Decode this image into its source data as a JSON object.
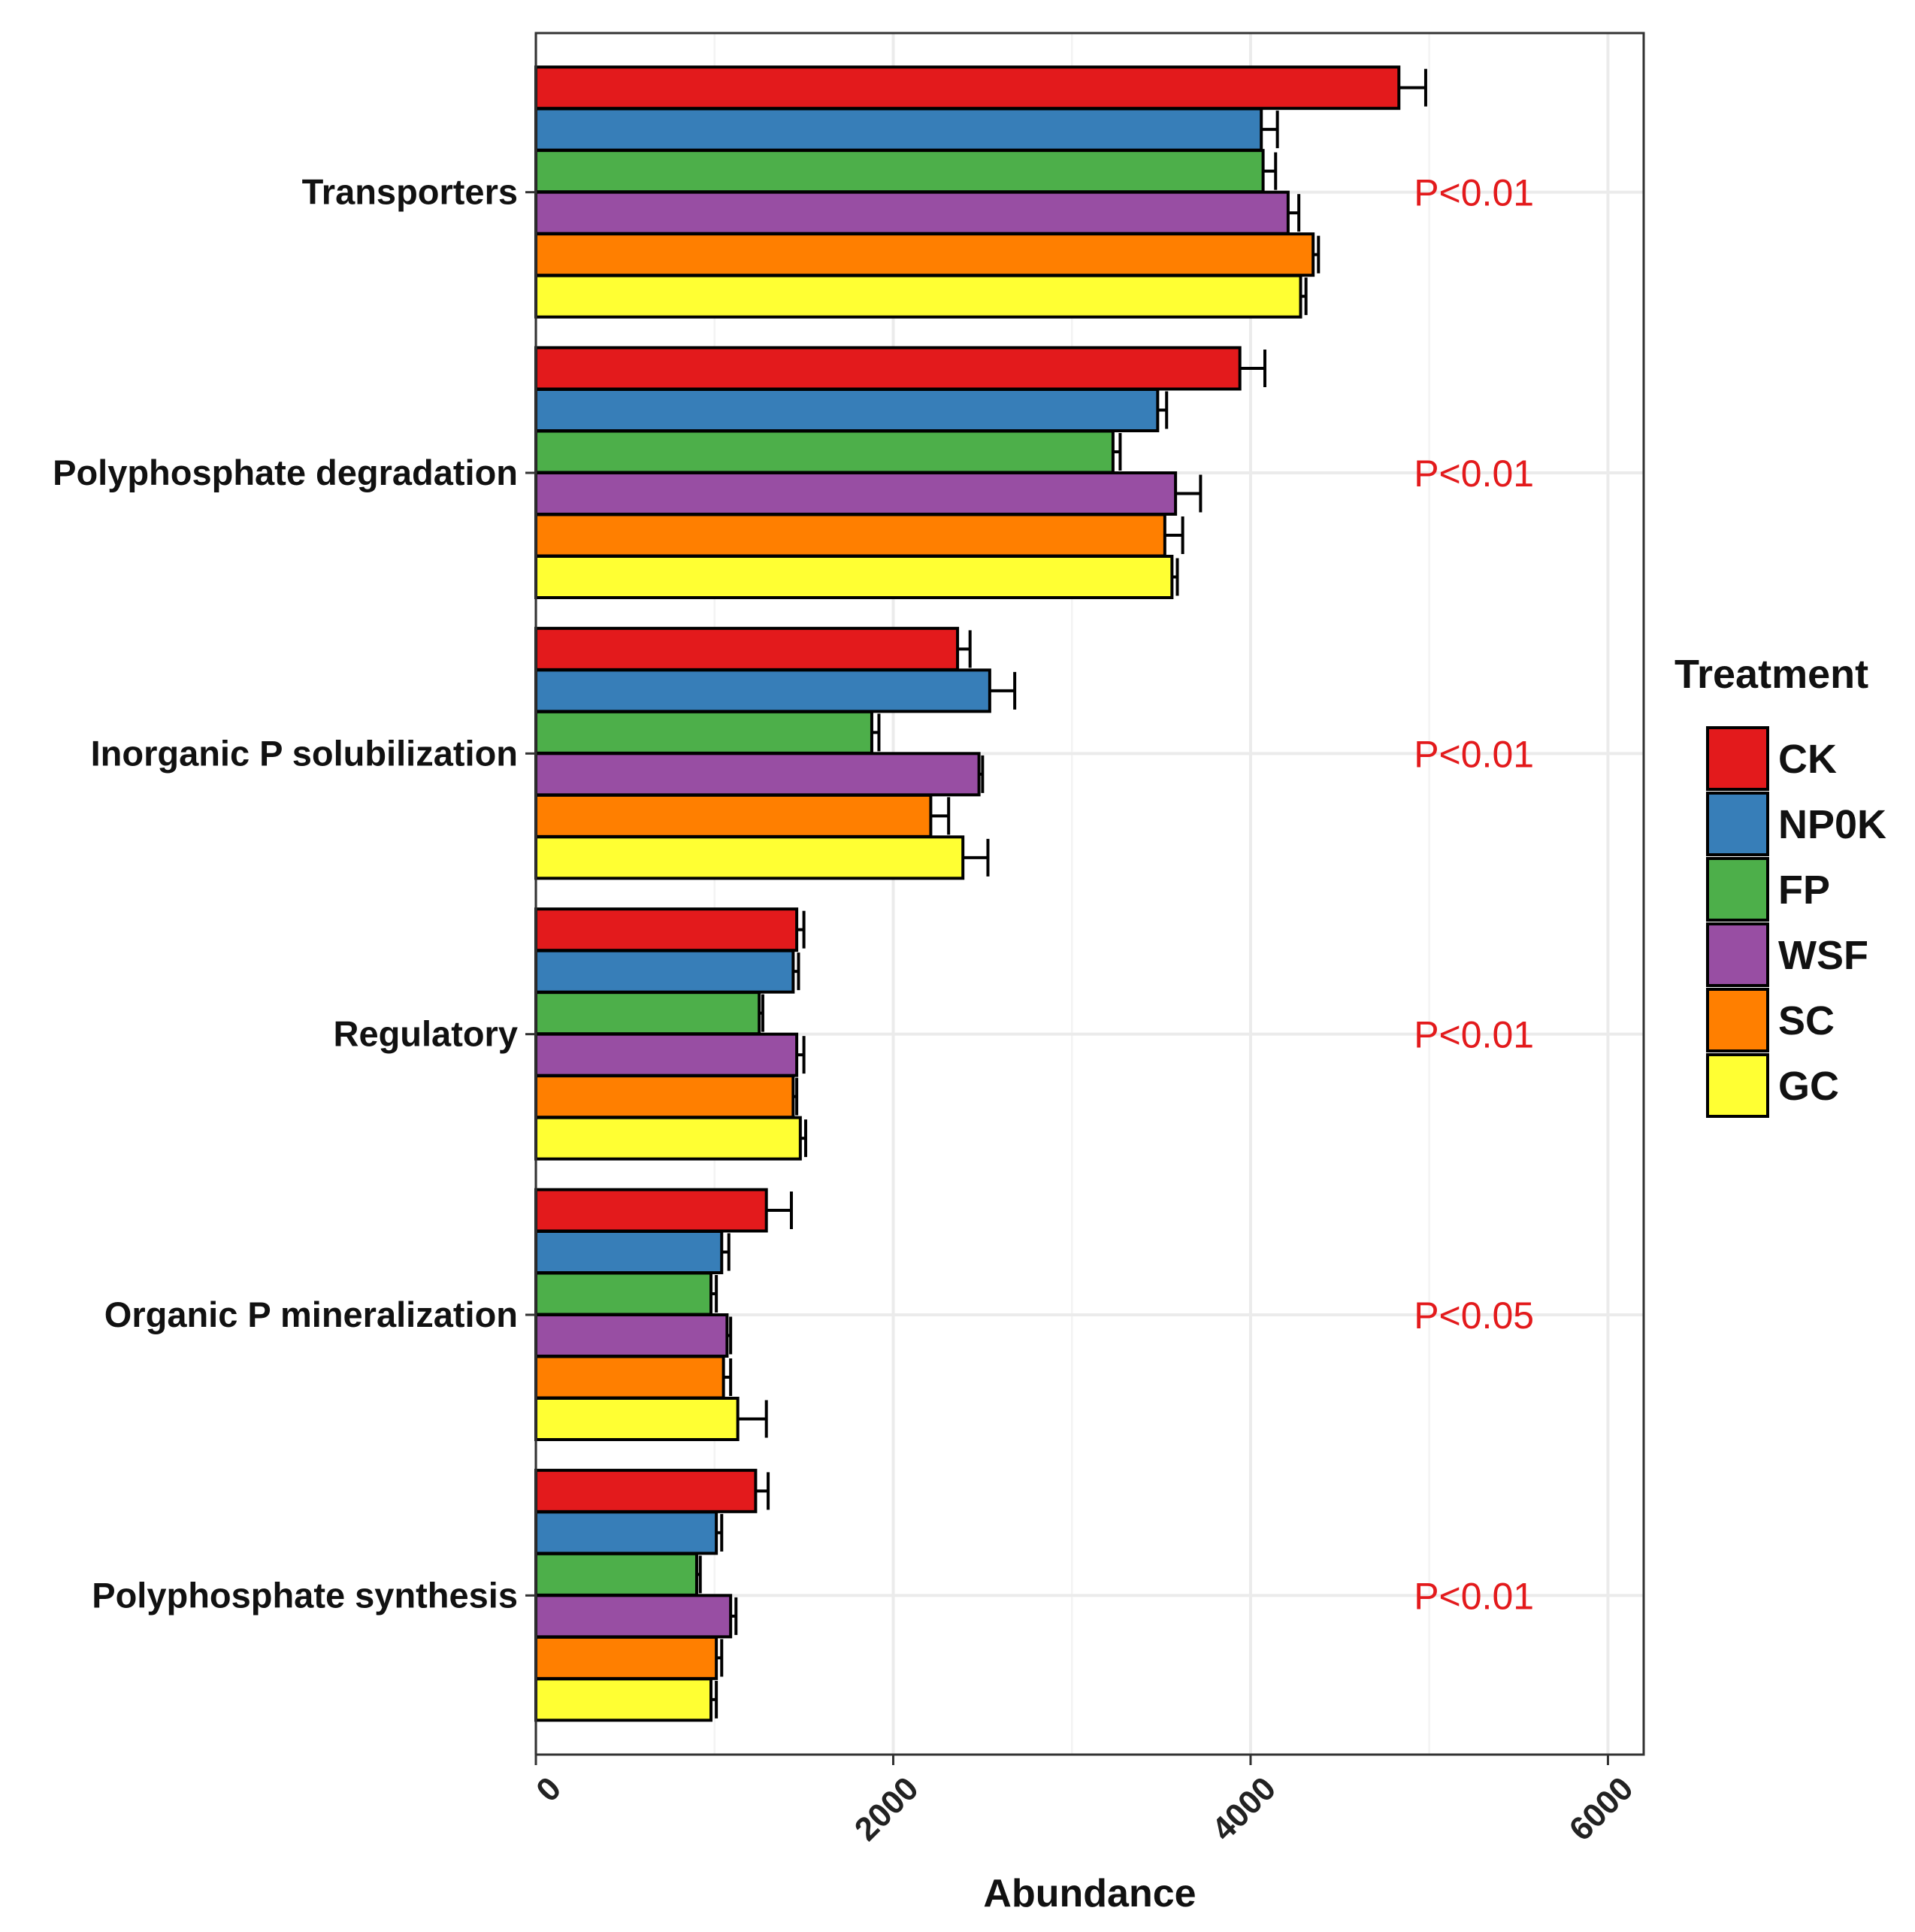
{
  "chart_data": {
    "type": "bar",
    "orientation": "horizontal",
    "title": "",
    "xlabel": "Abundance",
    "ylabel": "",
    "xlim": [
      0,
      6200
    ],
    "xticks": [
      0,
      2000,
      4000,
      6000
    ],
    "xtick_labels": [
      "0",
      "2000",
      "4000",
      "6000"
    ],
    "grid": true,
    "categories": [
      "Transporters",
      "Polyphosphate degradation",
      "Inorganic P solubilization",
      "Regulatory",
      "Organic P mineralization",
      "Polyphosphate synthesis"
    ],
    "series": [
      {
        "name": "CK",
        "color": "#e31a1c",
        "values": [
          4830,
          3940,
          2360,
          1460,
          1290,
          1230
        ],
        "errors": [
          150,
          140,
          70,
          40,
          140,
          70
        ]
      },
      {
        "name": "NP0K",
        "color": "#377eb8",
        "values": [
          4060,
          3480,
          2540,
          1440,
          1040,
          1010
        ],
        "errors": [
          90,
          50,
          140,
          30,
          40,
          30
        ]
      },
      {
        "name": "FP",
        "color": "#4daf4a",
        "values": [
          4070,
          3230,
          1880,
          1250,
          980,
          900
        ],
        "errors": [
          70,
          40,
          40,
          20,
          30,
          20
        ]
      },
      {
        "name": "WSF",
        "color": "#984ea3",
        "values": [
          4210,
          3580,
          2480,
          1460,
          1070,
          1090
        ],
        "errors": [
          60,
          140,
          20,
          40,
          20,
          30
        ]
      },
      {
        "name": "SC",
        "color": "#ff7f00",
        "values": [
          4350,
          3520,
          2210,
          1440,
          1050,
          1010
        ],
        "errors": [
          30,
          100,
          100,
          20,
          40,
          30
        ]
      },
      {
        "name": "GC",
        "color": "#ffff33",
        "values": [
          4280,
          3560,
          2390,
          1480,
          1130,
          980
        ],
        "errors": [
          30,
          30,
          140,
          30,
          160,
          30
        ]
      }
    ],
    "annotations": [
      "P<0.01",
      "P<0.01",
      "P<0.01",
      "P<0.01",
      "P<0.05",
      "P<0.01"
    ],
    "annotation_color": "#e31a1c",
    "legend": {
      "title": "Treatment",
      "position": "right"
    }
  }
}
